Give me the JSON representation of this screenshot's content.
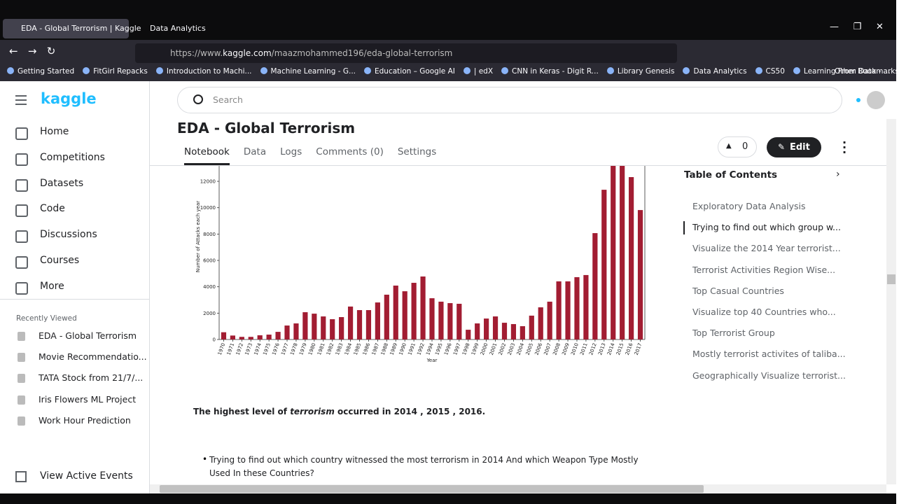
{
  "browser": {
    "tabs": [
      {
        "title": "EDA - Global Terrorism | Kaggle"
      },
      {
        "title": "Data Analytics"
      }
    ],
    "url_prefix": "https://www.",
    "url_domain": "kaggle.com",
    "url_path": "/maazmohammed196/eda-global-terrorism",
    "bookmarks": [
      "Getting Started",
      "FitGirl Repacks",
      "Introduction to Machi...",
      "Machine Learning - G...",
      "Education – Google AI",
      "| edX",
      "CNN in Keras - Digit R...",
      "Library Genesis",
      "Data Analytics",
      "CS50",
      "Learning From Data - ..."
    ],
    "other_bookmarks": "Other Bookmarks"
  },
  "sidebar": {
    "logo": "kaggle",
    "nav": [
      "Home",
      "Competitions",
      "Datasets",
      "Code",
      "Discussions",
      "Courses",
      "More"
    ],
    "recently_viewed_label": "Recently Viewed",
    "recent": [
      "EDA - Global Terrorism",
      "Movie Recommendatio...",
      "TATA Stock from 21/7/...",
      "Iris Flowers ML Project",
      "Work Hour Prediction"
    ],
    "view_active_events": "View Active Events"
  },
  "header": {
    "search_placeholder": "Search",
    "title": "EDA - Global Terrorism",
    "tabs": [
      "Notebook",
      "Data",
      "Logs",
      "Comments (0)",
      "Settings"
    ],
    "active_tab": 0,
    "votes": 0,
    "edit": "Edit"
  },
  "chart_data": {
    "type": "bar",
    "x_label": "Year",
    "y_label": "Number of Attacks each year",
    "color": "#a21d32",
    "categories": [
      "1970",
      "1971",
      "1972",
      "1973",
      "1974",
      "1975",
      "1976",
      "1977",
      "1978",
      "1979",
      "1980",
      "1981",
      "1982",
      "1983",
      "1984",
      "1985",
      "1986",
      "1987",
      "1988",
      "1989",
      "1990",
      "1991",
      "1992",
      "1994",
      "1995",
      "1996",
      "1997",
      "1998",
      "1999",
      "2000",
      "2001",
      "2002",
      "2003",
      "2004",
      "2005",
      "2006",
      "2007",
      "2008",
      "2009",
      "2010",
      "2011",
      "2012",
      "2013",
      "2014",
      "2015",
      "2016",
      "2017"
    ],
    "values": [
      550,
      300,
      200,
      200,
      320,
      370,
      580,
      1060,
      1220,
      2070,
      1960,
      1750,
      1540,
      1700,
      2500,
      2230,
      2230,
      2810,
      3400,
      4090,
      3660,
      4300,
      4780,
      3130,
      2870,
      2760,
      2710,
      740,
      1220,
      1590,
      1750,
      1270,
      1170,
      1010,
      1810,
      2440,
      2870,
      4410,
      4410,
      4730,
      4890,
      8070,
      11360,
      14000,
      14000,
      12320,
      9820
    ],
    "ylim": [
      0,
      14000
    ],
    "yticks": [
      0,
      2000,
      4000,
      6000,
      8000,
      10000,
      12000
    ]
  },
  "content": {
    "conclusion": [
      "The highest level of ",
      "terrorism",
      " occurred in 2014 , 2015 , 2016."
    ],
    "bullet": "Trying to find out which country witnessed the most terrorism in 2014 And which Weapon Type Mostly Used In these Countries?"
  },
  "toc": {
    "title": "Table of Contents",
    "active": 1,
    "items": [
      "Exploratory Data Analysis",
      "Trying to find out which group w...",
      "Visualize the 2014 Year terrorist...",
      "Terrorist Activities Region Wise...",
      "Top Casual Countries",
      "Visualize top 40 Countries who...",
      "Top Terrorist Group",
      "Mostly terrorist activites of taliba...",
      "Geographically Visualize terrorist..."
    ]
  }
}
